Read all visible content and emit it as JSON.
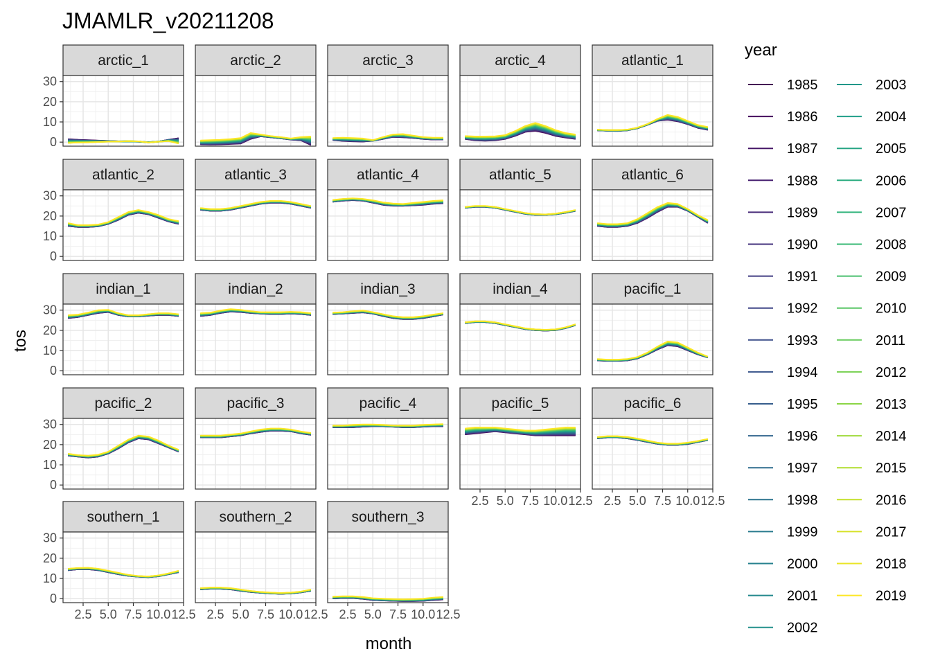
{
  "chart_data": {
    "type": "line",
    "title": "JMAMLR_v20211208",
    "xlabel": "month",
    "ylabel": "tos",
    "xlim": [
      1,
      12
    ],
    "ylim": [
      -2,
      33
    ],
    "x_ticks": [
      "2.5",
      "5.0",
      "7.5",
      "10.0",
      "12.5"
    ],
    "x_tick_values": [
      2.5,
      5.0,
      7.5,
      10.0,
      12.5
    ],
    "y_ticks": [
      "0",
      "10",
      "20",
      "30"
    ],
    "y_tick_values": [
      0,
      10,
      20,
      30
    ],
    "grid": true,
    "legend": {
      "title": "year",
      "position": "right",
      "years": [
        1985,
        1986,
        1987,
        1988,
        1989,
        1990,
        1991,
        1992,
        1993,
        1994,
        1995,
        1996,
        1997,
        1998,
        1999,
        2000,
        2001,
        2002,
        2003,
        2004,
        2005,
        2006,
        2007,
        2008,
        2009,
        2010,
        2011,
        2012,
        2013,
        2014,
        2015,
        2016,
        2017,
        2018,
        2019
      ],
      "palette": "viridis"
    },
    "panel_order": [
      "arctic_1",
      "arctic_2",
      "arctic_3",
      "arctic_4",
      "atlantic_1",
      "atlantic_2",
      "atlantic_3",
      "atlantic_4",
      "atlantic_5",
      "atlantic_6",
      "indian_1",
      "indian_2",
      "indian_3",
      "indian_4",
      "pacific_1",
      "pacific_2",
      "pacific_3",
      "pacific_4",
      "pacific_5",
      "pacific_6",
      "southern_1",
      "southern_2",
      "southern_3"
    ],
    "panels": {
      "arctic_1": {
        "early": [
          1.5,
          1.2,
          1.0,
          0.8,
          0.6,
          0.4,
          0.3,
          0.2,
          0.0,
          0.3,
          1.2,
          2.0
        ],
        "late": [
          -0.5,
          -0.3,
          -0.2,
          0.0,
          0.2,
          0.3,
          0.5,
          0.4,
          -0.2,
          0.2,
          0.5,
          -0.8
        ]
      },
      "arctic_2": {
        "early": [
          -1.2,
          -1.3,
          -1.2,
          -1.0,
          -0.8,
          1.5,
          2.8,
          2.3,
          1.8,
          1.2,
          0.8,
          -1.5
        ],
        "late": [
          0.8,
          1.0,
          1.2,
          1.5,
          2.0,
          4.5,
          3.8,
          3.0,
          2.5,
          1.8,
          2.5,
          2.8
        ]
      },
      "arctic_3": {
        "early": [
          1.0,
          0.5,
          0.3,
          0.2,
          0.6,
          1.5,
          2.5,
          2.3,
          2.0,
          1.5,
          1.2,
          1.2
        ],
        "late": [
          2.0,
          2.2,
          2.0,
          1.8,
          1.0,
          2.5,
          3.8,
          4.0,
          3.2,
          2.5,
          2.2,
          2.2
        ]
      },
      "arctic_4": {
        "early": [
          1.5,
          0.8,
          0.6,
          0.8,
          1.5,
          3.0,
          5.0,
          5.5,
          4.5,
          3.0,
          2.2,
          1.5
        ],
        "late": [
          3.0,
          2.8,
          2.8,
          2.9,
          3.5,
          5.5,
          8.0,
          9.5,
          8.0,
          6.0,
          4.5,
          3.8
        ]
      },
      "atlantic_1": {
        "early": [
          5.8,
          5.6,
          5.5,
          5.8,
          6.8,
          8.5,
          10.5,
          11.0,
          10.2,
          8.8,
          7.0,
          6.0
        ],
        "late": [
          6.2,
          6.0,
          6.0,
          6.2,
          7.2,
          9.0,
          11.5,
          13.5,
          12.5,
          10.5,
          8.5,
          7.5
        ]
      },
      "atlantic_2": {
        "early": [
          15.0,
          14.5,
          14.5,
          14.8,
          16.0,
          18.0,
          20.5,
          21.5,
          20.8,
          19.0,
          17.2,
          16.0
        ],
        "late": [
          16.5,
          15.5,
          15.5,
          15.8,
          17.0,
          19.5,
          22.0,
          23.0,
          22.0,
          20.5,
          18.5,
          17.5
        ]
      },
      "atlantic_3": {
        "early": [
          23.0,
          22.5,
          22.5,
          23.0,
          24.0,
          25.0,
          26.0,
          26.5,
          26.5,
          26.0,
          25.0,
          24.0
        ],
        "late": [
          24.0,
          23.5,
          23.5,
          24.0,
          25.0,
          26.0,
          27.0,
          27.5,
          27.5,
          27.0,
          26.0,
          25.0
        ]
      },
      "atlantic_4": {
        "early": [
          27.0,
          27.5,
          27.8,
          27.5,
          26.5,
          25.5,
          25.0,
          25.0,
          25.2,
          25.5,
          26.0,
          26.2
        ],
        "late": [
          28.0,
          28.5,
          28.8,
          28.5,
          27.8,
          26.8,
          26.2,
          26.0,
          26.5,
          27.0,
          27.5,
          27.8
        ]
      },
      "atlantic_5": {
        "early": [
          24.0,
          24.5,
          24.5,
          24.0,
          23.0,
          22.0,
          21.0,
          20.5,
          20.5,
          20.8,
          21.5,
          22.5
        ],
        "late": [
          24.5,
          25.0,
          25.0,
          24.5,
          23.5,
          22.5,
          21.5,
          21.0,
          20.8,
          21.2,
          22.0,
          23.0
        ]
      },
      "atlantic_6": {
        "early": [
          15.0,
          14.5,
          14.5,
          15.0,
          16.5,
          19.0,
          22.0,
          24.5,
          24.5,
          22.5,
          19.5,
          16.5
        ],
        "late": [
          16.5,
          16.0,
          16.0,
          16.5,
          18.5,
          21.5,
          24.5,
          26.5,
          26.0,
          23.5,
          20.5,
          18.0
        ]
      },
      "indian_1": {
        "early": [
          26.0,
          26.5,
          27.5,
          28.5,
          29.0,
          27.5,
          26.8,
          26.8,
          27.2,
          27.5,
          27.5,
          27.0
        ],
        "late": [
          27.5,
          27.8,
          28.8,
          30.0,
          30.2,
          28.5,
          27.5,
          27.5,
          28.0,
          28.5,
          28.5,
          28.0
        ]
      },
      "indian_2": {
        "early": [
          27.0,
          27.5,
          28.5,
          29.2,
          29.0,
          28.5,
          28.2,
          28.0,
          28.0,
          28.2,
          28.0,
          27.5
        ],
        "late": [
          28.5,
          28.8,
          29.8,
          30.5,
          30.2,
          29.5,
          29.0,
          29.0,
          29.0,
          29.2,
          29.0,
          28.5
        ]
      },
      "indian_3": {
        "early": [
          28.0,
          28.2,
          28.5,
          28.8,
          28.2,
          27.0,
          26.0,
          25.5,
          25.5,
          26.0,
          26.8,
          27.8
        ],
        "late": [
          28.8,
          29.0,
          29.5,
          29.8,
          29.0,
          28.0,
          27.0,
          26.5,
          26.5,
          27.0,
          27.8,
          28.5
        ]
      },
      "indian_4": {
        "early": [
          23.5,
          24.0,
          24.0,
          23.5,
          22.5,
          21.5,
          20.5,
          20.0,
          19.8,
          20.0,
          21.0,
          22.5
        ],
        "late": [
          24.0,
          24.5,
          24.5,
          24.0,
          23.0,
          22.0,
          21.0,
          20.5,
          20.3,
          20.5,
          21.5,
          23.0
        ]
      },
      "pacific_1": {
        "early": [
          5.0,
          4.8,
          4.8,
          5.0,
          6.0,
          8.0,
          10.5,
          12.5,
          12.0,
          10.0,
          8.0,
          6.5
        ],
        "late": [
          5.8,
          5.5,
          5.5,
          5.8,
          6.8,
          9.0,
          12.0,
          14.5,
          14.0,
          11.5,
          9.0,
          7.0
        ]
      },
      "pacific_2": {
        "early": [
          14.5,
          14.0,
          13.5,
          14.0,
          15.5,
          18.0,
          21.0,
          23.0,
          22.5,
          20.5,
          18.5,
          16.5
        ],
        "late": [
          15.5,
          14.8,
          14.5,
          15.0,
          16.5,
          19.5,
          22.5,
          24.5,
          24.0,
          22.0,
          19.5,
          17.5
        ]
      },
      "pacific_3": {
        "early": [
          23.5,
          23.5,
          23.5,
          24.0,
          24.5,
          25.5,
          26.2,
          26.8,
          26.8,
          26.5,
          25.5,
          24.8
        ],
        "late": [
          24.5,
          24.5,
          24.5,
          25.0,
          25.5,
          26.5,
          27.5,
          28.0,
          28.0,
          27.5,
          26.5,
          25.8
        ]
      },
      "pacific_4": {
        "early": [
          28.5,
          28.5,
          28.5,
          28.8,
          29.0,
          29.0,
          28.8,
          28.5,
          28.5,
          28.8,
          29.0,
          29.0
        ],
        "late": [
          29.5,
          29.5,
          29.8,
          30.0,
          30.0,
          29.8,
          29.5,
          29.5,
          29.5,
          29.8,
          30.0,
          30.2
        ]
      },
      "pacific_5": {
        "early": [
          25.0,
          25.5,
          26.0,
          26.5,
          26.0,
          25.5,
          25.0,
          24.5,
          24.5,
          24.5,
          24.5,
          24.5
        ],
        "late": [
          28.0,
          28.5,
          28.5,
          28.5,
          28.0,
          27.5,
          27.0,
          27.0,
          27.5,
          28.0,
          28.5,
          28.5
        ]
      },
      "pacific_6": {
        "early": [
          23.0,
          23.5,
          23.5,
          23.0,
          22.2,
          21.2,
          20.3,
          19.8,
          19.8,
          20.2,
          21.2,
          22.2
        ],
        "late": [
          23.8,
          24.2,
          24.2,
          23.8,
          23.0,
          22.0,
          21.0,
          20.5,
          20.5,
          21.0,
          21.8,
          22.8
        ]
      },
      "southern_1": {
        "early": [
          14.0,
          14.5,
          14.5,
          14.0,
          13.0,
          12.0,
          11.2,
          10.8,
          10.6,
          11.0,
          12.0,
          13.0
        ],
        "late": [
          14.8,
          15.2,
          15.3,
          14.8,
          13.8,
          12.8,
          11.8,
          11.2,
          11.0,
          11.5,
          12.5,
          13.8
        ]
      },
      "southern_2": {
        "early": [
          4.5,
          4.8,
          4.8,
          4.5,
          3.8,
          3.2,
          2.8,
          2.5,
          2.3,
          2.5,
          3.0,
          3.8
        ],
        "late": [
          5.2,
          5.5,
          5.5,
          5.2,
          4.5,
          3.8,
          3.3,
          3.0,
          2.8,
          3.0,
          3.5,
          4.5
        ]
      },
      "southern_3": {
        "early": [
          0.0,
          0.2,
          0.2,
          -0.2,
          -0.8,
          -1.0,
          -1.2,
          -1.3,
          -1.3,
          -1.2,
          -0.8,
          -0.5
        ],
        "late": [
          1.0,
          1.2,
          1.2,
          0.8,
          0.2,
          0.0,
          -0.2,
          -0.3,
          -0.2,
          0.0,
          0.5,
          0.8
        ]
      }
    }
  }
}
